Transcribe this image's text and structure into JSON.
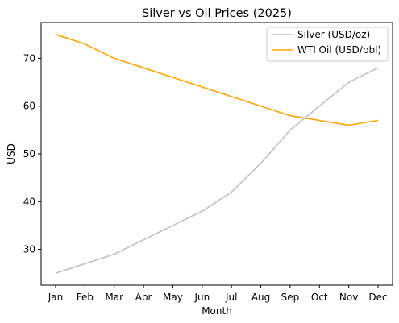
{
  "chart_data": {
    "type": "line",
    "title": "Silver vs Oil Prices (2025)",
    "xlabel": "Month",
    "ylabel": "USD",
    "categories": [
      "Jan",
      "Feb",
      "Mar",
      "Apr",
      "May",
      "Jun",
      "Jul",
      "Aug",
      "Sep",
      "Oct",
      "Nov",
      "Dec"
    ],
    "series": [
      {
        "name": "Silver (USD/oz)",
        "color": "#c0c0c0",
        "values": [
          25,
          27,
          29,
          32,
          35,
          38,
          42,
          48,
          55,
          60,
          65,
          68
        ]
      },
      {
        "name": "WTI Oil (USD/bbl)",
        "color": "#ffa500",
        "values": [
          75,
          73,
          70,
          68,
          66,
          64,
          62,
          60,
          58,
          57,
          56,
          57
        ]
      }
    ],
    "ylim": [
      22.5,
      77.5
    ],
    "yticks": [
      30,
      40,
      50,
      60,
      70
    ],
    "grid": false,
    "legend": "top-right"
  }
}
